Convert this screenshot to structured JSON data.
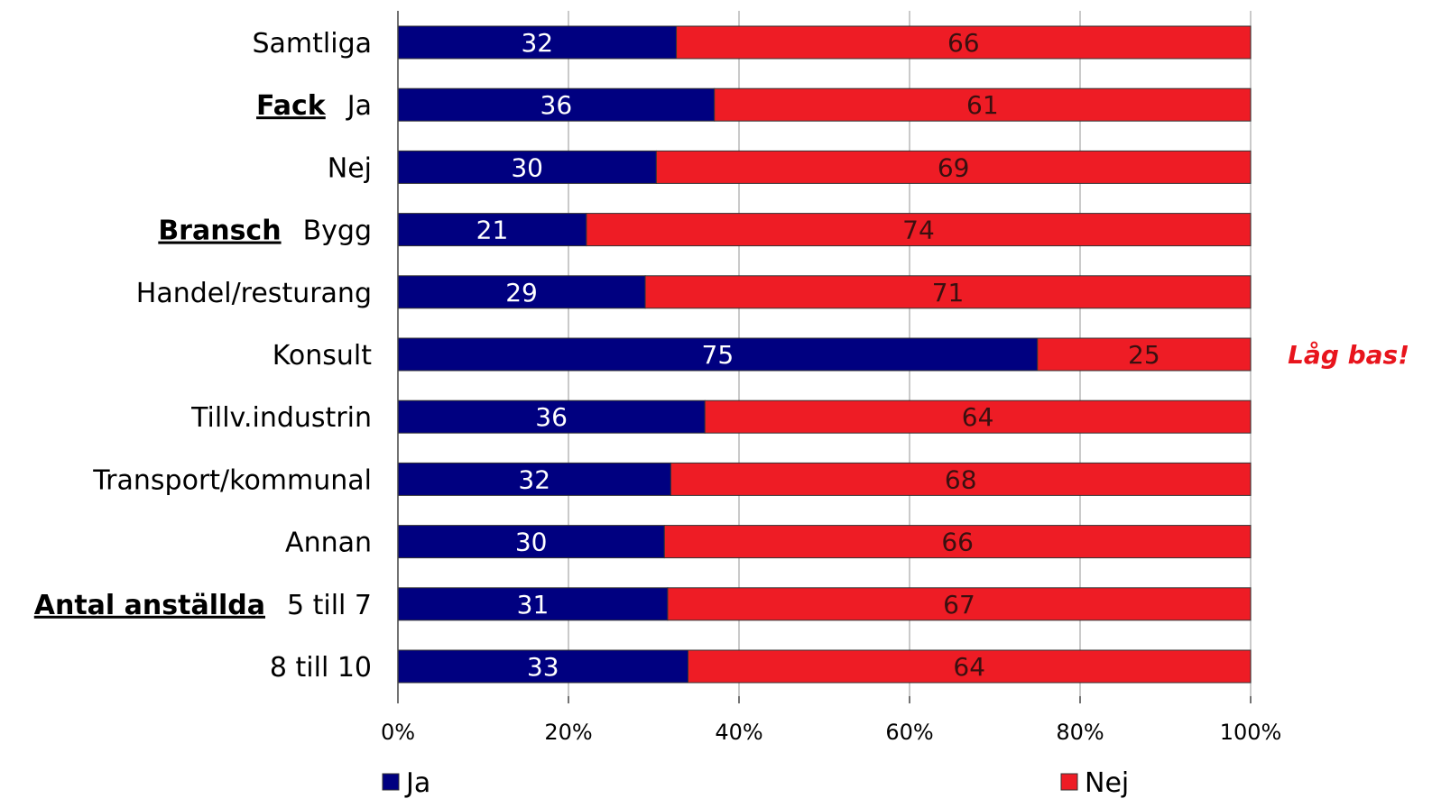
{
  "chart_data": {
    "type": "bar",
    "orientation": "horizontal",
    "stacked": true,
    "percent_scale": true,
    "categories": [
      "Samtliga",
      "Ja",
      "Nej",
      "Bygg",
      "Handel/resturang",
      "Konsult",
      "Tillv.industrin",
      "Transport/kommunal",
      "Annan",
      "5 till 7",
      "8 till 10"
    ],
    "groups": [
      {
        "label": "Fack",
        "first_category_index": 1
      },
      {
        "label": "Bransch",
        "first_category_index": 3
      },
      {
        "label": "Antal anställda",
        "first_category_index": 9
      }
    ],
    "series": [
      {
        "name": "Ja",
        "color": "#000080",
        "values": [
          32,
          36,
          30,
          21,
          29,
          75,
          36,
          32,
          30,
          31,
          33
        ]
      },
      {
        "name": "Nej",
        "color": "#ee1c25",
        "values": [
          66,
          61,
          69,
          74,
          71,
          25,
          64,
          68,
          66,
          67,
          64
        ]
      }
    ],
    "x_ticks": [
      "0%",
      "20%",
      "40%",
      "60%",
      "80%",
      "100%"
    ],
    "xlim": [
      0,
      100
    ],
    "grid": true,
    "legend_position": "bottom",
    "annotations": [
      {
        "text": "Låg bas!",
        "category_index": 5,
        "color": "#e8141c"
      }
    ]
  }
}
